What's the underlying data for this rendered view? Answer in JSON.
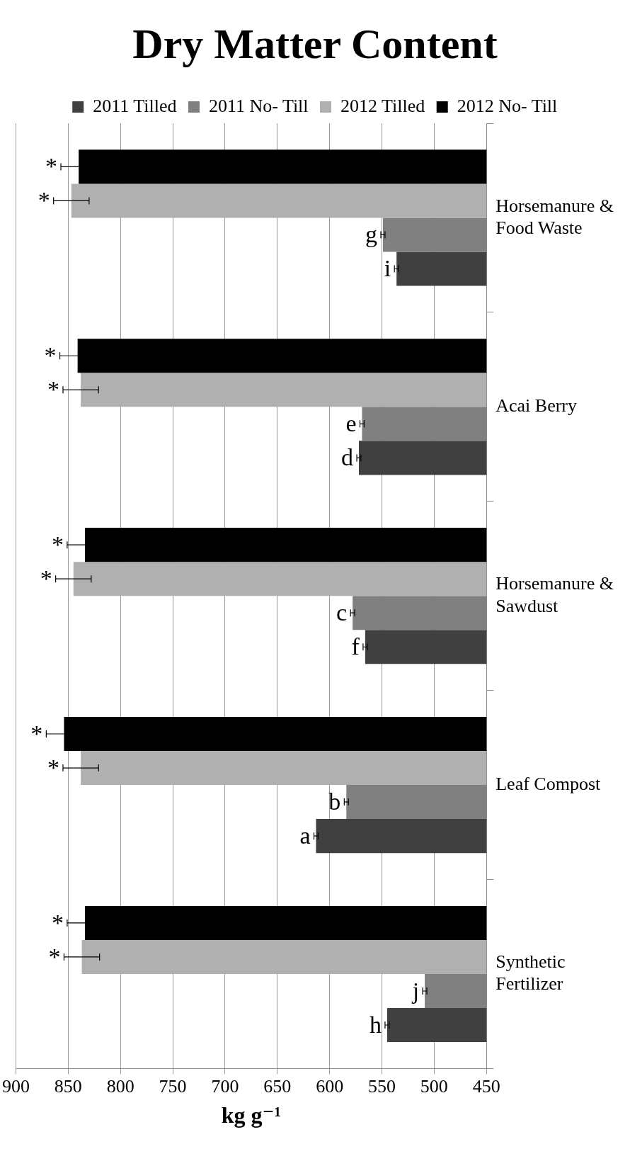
{
  "chart_data": {
    "type": "bar",
    "orientation": "horizontal",
    "title": "Dry Matter Content",
    "xlabel": "kg g⁻¹",
    "categories": [
      "Horsemanure & Food Waste",
      "Acai Berry",
      "Horsemanure & Sawdust",
      "Leaf Compost",
      "Synthetic Fertilizer"
    ],
    "series": [
      {
        "name": "2011 Tilled",
        "color": "#404040",
        "values": [
          536,
          572,
          566,
          613,
          545
        ],
        "errors": [
          2,
          2,
          2,
          2,
          2
        ],
        "value_labels": [
          "i",
          "d",
          "f",
          "a",
          "h"
        ]
      },
      {
        "name": "2011 No- Till",
        "color": "#808080",
        "values": [
          549,
          569,
          578,
          584,
          509
        ],
        "errors": [
          2,
          2,
          2,
          2,
          2
        ],
        "value_labels": [
          "g",
          "e",
          "c",
          "b",
          "j"
        ]
      },
      {
        "name": "2012 Tilled",
        "color": "#b0b0b0",
        "values": [
          847,
          838,
          845,
          838,
          837
        ],
        "errors": [
          17,
          17,
          17,
          17,
          17
        ],
        "value_labels": [
          "*",
          "*",
          "*",
          "*",
          "*"
        ]
      },
      {
        "name": "2012 No- Till",
        "color": "#000000",
        "values": [
          840,
          841,
          834,
          854,
          834
        ],
        "errors": [
          17,
          17,
          17,
          17,
          17
        ],
        "value_labels": [
          "*",
          "*",
          "*",
          "*",
          "*"
        ]
      }
    ],
    "xlim": [
      900,
      450
    ],
    "xticks": [
      900,
      850,
      800,
      750,
      700,
      650,
      600,
      550,
      500,
      450
    ],
    "grid": "x",
    "legend": "top"
  }
}
